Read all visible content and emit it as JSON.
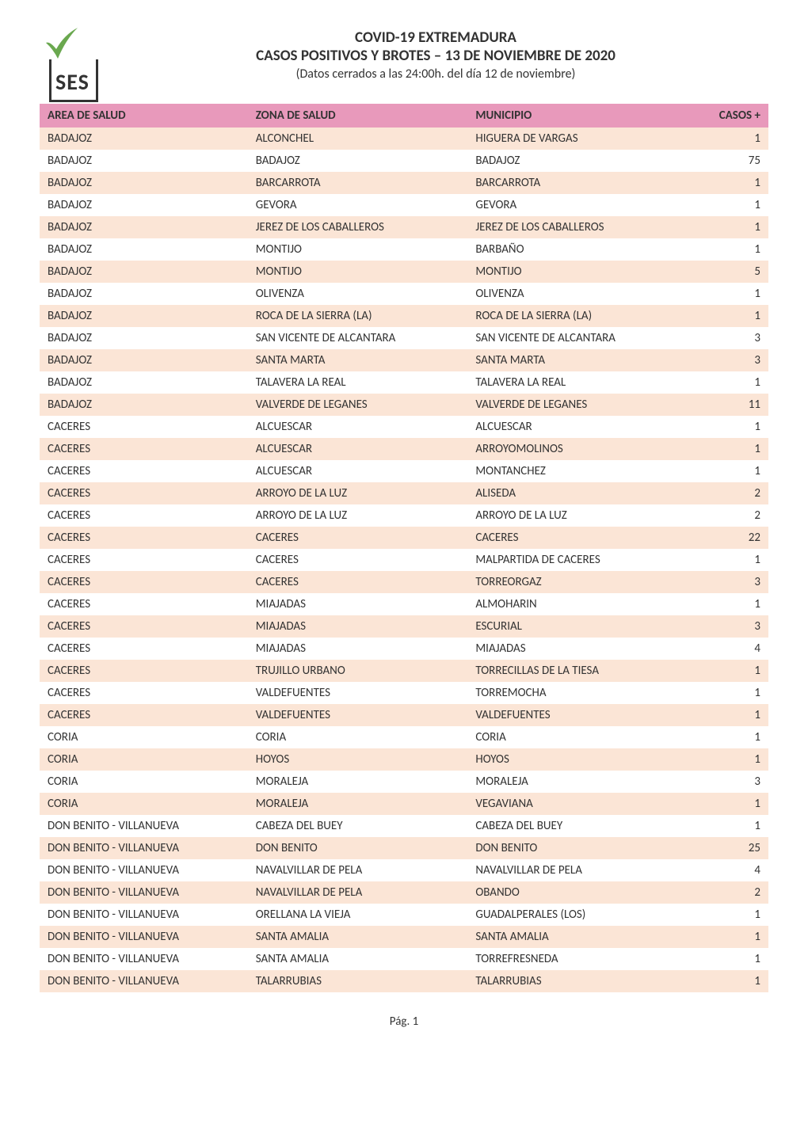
{
  "logo": {
    "text": "SES",
    "tick_color": "#6aa84f",
    "box_border": "#333333"
  },
  "title": "COVID-19 EXTREMADURA",
  "subtitle": "CASOS POSITIVOS Y BROTES – 13 DE NOVIEMBRE DE 2020",
  "date_line": "(Datos cerrados a las 24:00h. del día 12 de noviembre)",
  "columns": [
    "AREA DE SALUD",
    "ZONA DE SALUD",
    "MUNICIPIO",
    "CASOS +"
  ],
  "header_bg": "#e899bb",
  "row_odd_bg": "#fbe5d6",
  "row_even_bg": "#ffffff",
  "rows": [
    [
      "BADAJOZ",
      "ALCONCHEL",
      "HIGUERA DE VARGAS",
      "1"
    ],
    [
      "BADAJOZ",
      "BADAJOZ",
      "BADAJOZ",
      "75"
    ],
    [
      "BADAJOZ",
      "BARCARROTA",
      "BARCARROTA",
      "1"
    ],
    [
      "BADAJOZ",
      "GEVORA",
      "GEVORA",
      "1"
    ],
    [
      "BADAJOZ",
      "JEREZ DE LOS CABALLEROS",
      "JEREZ DE LOS CABALLEROS",
      "1"
    ],
    [
      "BADAJOZ",
      "MONTIJO",
      "BARBAÑO",
      "1"
    ],
    [
      "BADAJOZ",
      "MONTIJO",
      "MONTIJO",
      "5"
    ],
    [
      "BADAJOZ",
      "OLIVENZA",
      "OLIVENZA",
      "1"
    ],
    [
      "BADAJOZ",
      "ROCA DE LA SIERRA (LA)",
      "ROCA DE LA SIERRA (LA)",
      "1"
    ],
    [
      "BADAJOZ",
      "SAN VICENTE DE ALCANTARA",
      "SAN VICENTE DE ALCANTARA",
      "3"
    ],
    [
      "BADAJOZ",
      "SANTA MARTA",
      "SANTA MARTA",
      "3"
    ],
    [
      "BADAJOZ",
      "TALAVERA LA REAL",
      "TALAVERA LA REAL",
      "1"
    ],
    [
      "BADAJOZ",
      "VALVERDE DE LEGANES",
      "VALVERDE DE LEGANES",
      "11"
    ],
    [
      "CACERES",
      "ALCUESCAR",
      "ALCUESCAR",
      "1"
    ],
    [
      "CACERES",
      "ALCUESCAR",
      "ARROYOMOLINOS",
      "1"
    ],
    [
      "CACERES",
      "ALCUESCAR",
      "MONTANCHEZ",
      "1"
    ],
    [
      "CACERES",
      "ARROYO DE LA LUZ",
      "ALISEDA",
      "2"
    ],
    [
      "CACERES",
      "ARROYO DE LA LUZ",
      "ARROYO DE LA LUZ",
      "2"
    ],
    [
      "CACERES",
      "CACERES",
      "CACERES",
      "22"
    ],
    [
      "CACERES",
      "CACERES",
      "MALPARTIDA DE CACERES",
      "1"
    ],
    [
      "CACERES",
      "CACERES",
      "TORREORGAZ",
      "3"
    ],
    [
      "CACERES",
      "MIAJADAS",
      "ALMOHARIN",
      "1"
    ],
    [
      "CACERES",
      "MIAJADAS",
      "ESCURIAL",
      "3"
    ],
    [
      "CACERES",
      "MIAJADAS",
      "MIAJADAS",
      "4"
    ],
    [
      "CACERES",
      "TRUJILLO URBANO",
      "TORRECILLAS DE LA TIESA",
      "1"
    ],
    [
      "CACERES",
      "VALDEFUENTES",
      "TORREMOCHA",
      "1"
    ],
    [
      "CACERES",
      "VALDEFUENTES",
      "VALDEFUENTES",
      "1"
    ],
    [
      "CORIA",
      "CORIA",
      "CORIA",
      "1"
    ],
    [
      "CORIA",
      "HOYOS",
      "HOYOS",
      "1"
    ],
    [
      "CORIA",
      "MORALEJA",
      "MORALEJA",
      "3"
    ],
    [
      "CORIA",
      "MORALEJA",
      "VEGAVIANA",
      "1"
    ],
    [
      "DON BENITO - VILLANUEVA",
      "CABEZA DEL BUEY",
      "CABEZA DEL BUEY",
      "1"
    ],
    [
      "DON BENITO - VILLANUEVA",
      "DON BENITO",
      "DON BENITO",
      "25"
    ],
    [
      "DON BENITO - VILLANUEVA",
      "NAVALVILLAR DE PELA",
      "NAVALVILLAR DE PELA",
      "4"
    ],
    [
      "DON BENITO - VILLANUEVA",
      "NAVALVILLAR DE PELA",
      "OBANDO",
      "2"
    ],
    [
      "DON BENITO - VILLANUEVA",
      "ORELLANA LA VIEJA",
      "GUADALPERALES (LOS)",
      "1"
    ],
    [
      "DON BENITO - VILLANUEVA",
      "SANTA AMALIA",
      "SANTA AMALIA",
      "1"
    ],
    [
      "DON BENITO - VILLANUEVA",
      "SANTA AMALIA",
      "TORREFRESNEDA",
      "1"
    ],
    [
      "DON BENITO - VILLANUEVA",
      "TALARRUBIAS",
      "TALARRUBIAS",
      "1"
    ]
  ],
  "footer": "Pág. 1"
}
